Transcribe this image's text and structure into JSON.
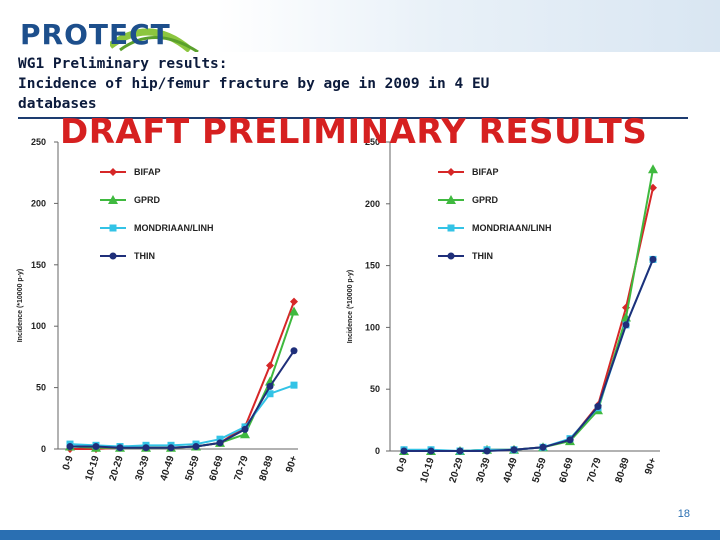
{
  "header": {
    "logo_text": "PROTECT",
    "title_line1": "WG1 Preliminary results:",
    "title_line2": "Incidence of hip/femur fracture by age in 2009 in 4 EU",
    "title_line3": "databases"
  },
  "banner": "DRAFT PRELIMINARY RESULTS",
  "footer": {
    "page_number": "18"
  },
  "colors": {
    "BIFAP": "#d62728",
    "GPRD": "#3fb93f",
    "MONDRIAAN/LINH": "#33c3e6",
    "THIN": "#1f2f7a"
  },
  "chart_data": [
    {
      "type": "line",
      "ylabel": "Incidence (*10000 p-y)",
      "ylim": [
        0,
        250
      ],
      "yticks": [
        "0",
        "50",
        "100",
        "150",
        "200",
        "250"
      ],
      "categories": [
        "0-9",
        "10-19",
        "20-29",
        "30-39",
        "40-49",
        "50-59",
        "60-69",
        "70-79",
        "80-89",
        "90+"
      ],
      "legend_position": "top-left",
      "series": [
        {
          "name": "BIFAP",
          "values": [
            0,
            0,
            1,
            1,
            1,
            2,
            5,
            18,
            68,
            120
          ]
        },
        {
          "name": "GPRD",
          "values": [
            2,
            1,
            1,
            1,
            1,
            2,
            5,
            12,
            55,
            112
          ]
        },
        {
          "name": "MONDRIAAN/LINH",
          "values": [
            4,
            3,
            2,
            3,
            3,
            4,
            8,
            18,
            45,
            52
          ]
        },
        {
          "name": "THIN",
          "values": [
            2,
            2,
            1,
            1,
            1,
            2,
            5,
            16,
            51,
            80
          ]
        }
      ]
    },
    {
      "type": "line",
      "ylabel": "Incidence (*10000 p-y)",
      "ylim": [
        0,
        250
      ],
      "yticks": [
        "0",
        "50",
        "100",
        "150",
        "200",
        "250"
      ],
      "categories": [
        "0-9",
        "10-19",
        "20-29",
        "30-39",
        "40-49",
        "50-59",
        "60-69",
        "70-79",
        "80-89",
        "90+"
      ],
      "legend_position": "top-left",
      "series": [
        {
          "name": "BIFAP",
          "values": [
            0,
            0,
            0,
            1,
            1,
            3,
            9,
            37,
            116,
            213
          ]
        },
        {
          "name": "GPRD",
          "values": [
            0,
            0,
            0,
            1,
            1,
            3,
            8,
            33,
            108,
            228
          ]
        },
        {
          "name": "MONDRIAAN/LINH",
          "values": [
            1,
            1,
            0,
            1,
            1,
            3,
            10,
            35,
            102,
            155
          ]
        },
        {
          "name": "THIN",
          "values": [
            0,
            0,
            0,
            0,
            1,
            3,
            9,
            36,
            102,
            155
          ]
        }
      ]
    }
  ]
}
